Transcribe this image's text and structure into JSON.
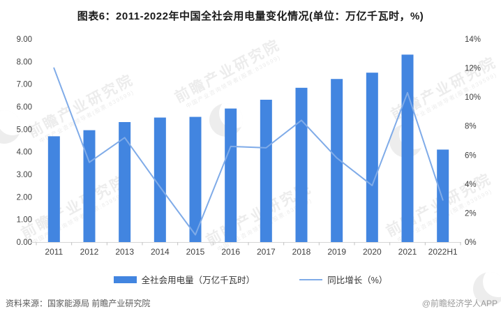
{
  "title": "图表6：2011-2022年中国全社会用电量变化情况(单位：万亿千瓦时，%)",
  "chart_data": {
    "type": "bar",
    "subtype": "bar-plus-line-dual-axis",
    "categories": [
      "2011",
      "2012",
      "2013",
      "2014",
      "2015",
      "2016",
      "2017",
      "2018",
      "2019",
      "2020",
      "2021",
      "2022H1"
    ],
    "series": [
      {
        "name": "全社会用电量（万亿千瓦时）",
        "type": "bar",
        "axis": "left",
        "values": [
          4.69,
          4.96,
          5.32,
          5.52,
          5.55,
          5.92,
          6.31,
          6.84,
          7.23,
          7.51,
          8.31,
          4.1
        ]
      },
      {
        "name": "同比增长（%）",
        "type": "line",
        "axis": "right",
        "values": [
          12.0,
          5.5,
          7.2,
          3.8,
          0.5,
          6.6,
          6.5,
          8.4,
          5.8,
          3.9,
          10.3,
          2.9
        ]
      }
    ],
    "left_axis": {
      "min": 0,
      "max": 9,
      "step": 1,
      "format": "2dp"
    },
    "right_axis": {
      "min": 0,
      "max": 14,
      "step": 2,
      "format": "percent"
    },
    "grid": false,
    "legend_position": "bottom"
  },
  "colors": {
    "bar": "#4285e0",
    "line": "#7fabe8",
    "axis_text": "#404040",
    "axis_line": "#d6d6d6",
    "tick": "#bfbfbf"
  },
  "footer": {
    "source": "资料来源：国家能源局 前瞻产业研究院",
    "credit": "@前瞻经济学人APP"
  },
  "watermark": {
    "text": "前瞻产业研究院",
    "subtext": "中国产业咨询领导者(股票:839599)"
  }
}
